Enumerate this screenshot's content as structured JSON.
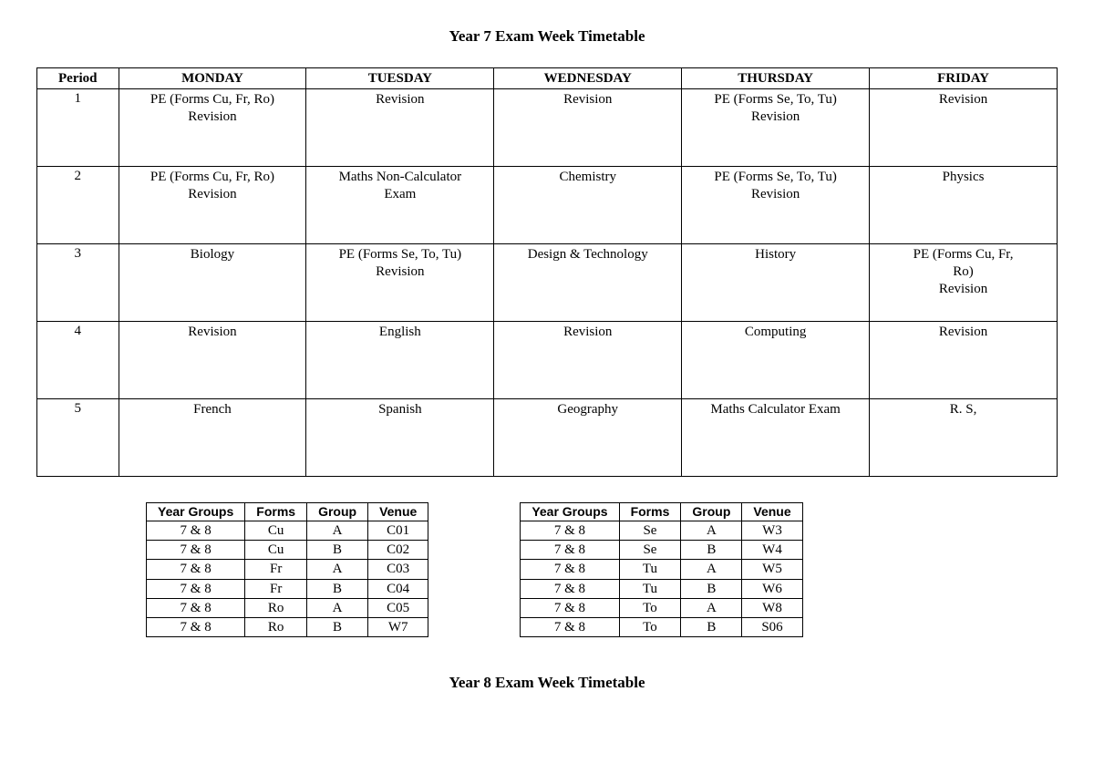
{
  "title_main": "Year 7 Exam Week Timetable",
  "title_secondary": "Year 8 Exam Week Timetable",
  "timetable": {
    "columns": [
      "Period",
      "MONDAY",
      "TUESDAY",
      "WEDNESDAY",
      "THURSDAY",
      "FRIDAY"
    ],
    "rows": [
      {
        "period": "1",
        "cells": [
          [
            "PE (Forms Cu, Fr, Ro)",
            "Revision"
          ],
          [
            "Revision"
          ],
          [
            "Revision"
          ],
          [
            "PE (Forms Se, To, Tu)",
            "Revision"
          ],
          [
            "Revision"
          ]
        ]
      },
      {
        "period": "2",
        "cells": [
          [
            "PE (Forms Cu, Fr, Ro)",
            "Revision"
          ],
          [
            "Maths Non-Calculator",
            "Exam"
          ],
          [
            "Chemistry"
          ],
          [
            "PE (Forms Se, To, Tu)",
            "Revision"
          ],
          [
            "Physics"
          ]
        ]
      },
      {
        "period": "3",
        "cells": [
          [
            "Biology"
          ],
          [
            "PE (Forms Se, To, Tu)",
            "Revision"
          ],
          [
            "Design & Technology"
          ],
          [
            "History"
          ],
          [
            "PE (Forms Cu, Fr,",
            "Ro)",
            "Revision"
          ]
        ]
      },
      {
        "period": "4",
        "cells": [
          [
            "Revision"
          ],
          [
            "English"
          ],
          [
            "Revision"
          ],
          [
            "Computing"
          ],
          [
            "Revision"
          ]
        ]
      },
      {
        "period": "5",
        "cells": [
          [
            "French"
          ],
          [
            "Spanish"
          ],
          [
            "Geography"
          ],
          [
            "Maths Calculator Exam"
          ],
          [
            "R. S,"
          ]
        ]
      }
    ]
  },
  "venues_columns": [
    "Year Groups",
    "Forms",
    "Group",
    "Venue"
  ],
  "venues_left": [
    [
      "7 & 8",
      "Cu",
      "A",
      "C01"
    ],
    [
      "7 & 8",
      "Cu",
      "B",
      "C02"
    ],
    [
      "7 & 8",
      "Fr",
      "A",
      "C03"
    ],
    [
      "7 & 8",
      "Fr",
      "B",
      "C04"
    ],
    [
      "7 & 8",
      "Ro",
      "A",
      "C05"
    ],
    [
      "7 & 8",
      "Ro",
      "B",
      "W7"
    ]
  ],
  "venues_right": [
    [
      "7 & 8",
      "Se",
      "A",
      "W3"
    ],
    [
      "7 & 8",
      "Se",
      "B",
      "W4"
    ],
    [
      "7 & 8",
      "Tu",
      "A",
      "W5"
    ],
    [
      "7 & 8",
      "Tu",
      "B",
      "W6"
    ],
    [
      "7 & 8",
      "To",
      "A",
      "W8"
    ],
    [
      "7 & 8",
      "To",
      "B",
      "S06"
    ]
  ]
}
